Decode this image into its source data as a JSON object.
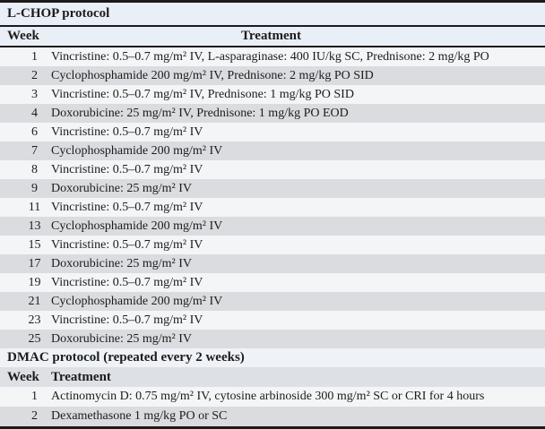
{
  "colors": {
    "border": "#1a1a1a",
    "title1_bg": "#e8eff7",
    "header1_bg": "#e8eff7",
    "title2_bg": "#eff2f6",
    "header2_bg": "#dde0e4",
    "row_light": "#f4f5f7",
    "row_dark": "#dbdcdf",
    "text": "#1c1c1c"
  },
  "table": {
    "sections": [
      {
        "title": "L-CHOP protocol",
        "columns": {
          "week": "Week",
          "treatment": "Treatment"
        },
        "rows": [
          {
            "week": "1",
            "treatment": "Vincristine: 0.5–0.7 mg/m² IV, L-asparaginase: 400 IU/kg SC, Prednisone: 2 mg/kg PO"
          },
          {
            "week": "2",
            "treatment": "Cyclophosphamide 200 mg/m² IV, Prednisone: 2 mg/kg PO SID"
          },
          {
            "week": "3",
            "treatment": "Vincristine: 0.5–0.7 mg/m² IV, Prednisone: 1 mg/kg PO SID"
          },
          {
            "week": "4",
            "treatment": "Doxorubicine: 25 mg/m² IV, Prednisone: 1 mg/kg PO EOD"
          },
          {
            "week": "6",
            "treatment": "Vincristine: 0.5–0.7 mg/m² IV"
          },
          {
            "week": "7",
            "treatment": "Cyclophosphamide 200 mg/m² IV"
          },
          {
            "week": "8",
            "treatment": "Vincristine: 0.5–0.7 mg/m² IV"
          },
          {
            "week": "9",
            "treatment": "Doxorubicine: 25 mg/m² IV"
          },
          {
            "week": "11",
            "treatment": "Vincristine: 0.5–0.7 mg/m² IV"
          },
          {
            "week": "13",
            "treatment": "Cyclophosphamide 200 mg/m² IV"
          },
          {
            "week": "15",
            "treatment": "Vincristine: 0.5–0.7 mg/m² IV"
          },
          {
            "week": "17",
            "treatment": "Doxorubicine: 25 mg/m² IV"
          },
          {
            "week": "19",
            "treatment": "Vincristine: 0.5–0.7 mg/m² IV"
          },
          {
            "week": "21",
            "treatment": "Cyclophosphamide 200 mg/m² IV"
          },
          {
            "week": "23",
            "treatment": "Vincristine: 0.5–0.7 mg/m² IV"
          },
          {
            "week": "25",
            "treatment": "Doxorubicine: 25 mg/m² IV"
          }
        ]
      },
      {
        "title": "DMAC protocol (repeated every 2 weeks)",
        "columns": {
          "week": "Week",
          "treatment": "Treatment"
        },
        "rows": [
          {
            "week": "1",
            "treatment": "Actinomycin D: 0.75 mg/m² IV, cytosine arbinoside 300 mg/m² SC or CRI for 4 hours"
          },
          {
            "week": "2",
            "treatment": "Dexamethasone 1 mg/kg PO or SC"
          }
        ]
      }
    ]
  }
}
